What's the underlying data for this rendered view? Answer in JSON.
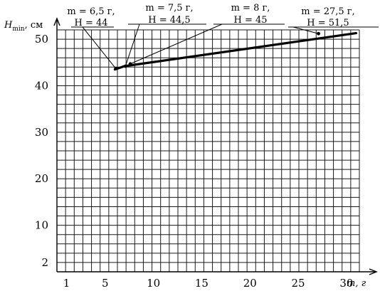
{
  "chart_data": {
    "type": "line",
    "xlabel": "m, г",
    "ylabel": "H_min, см",
    "ylabel_main": "H",
    "ylabel_sub": "min",
    "ylabel_unit": ", см",
    "xlim": [
      0,
      32
    ],
    "ylim": [
      0,
      52
    ],
    "x_ticks": [
      {
        "value": 1,
        "label": "1"
      },
      {
        "value": 5,
        "label": "5"
      },
      {
        "value": 10,
        "label": "10"
      },
      {
        "value": 15,
        "label": "15"
      },
      {
        "value": 20,
        "label": "20"
      },
      {
        "value": 25,
        "label": "25"
      },
      {
        "value": 30,
        "label": "30"
      }
    ],
    "y_ticks": [
      {
        "value": 2,
        "label": "2"
      },
      {
        "value": 10,
        "label": "10"
      },
      {
        "value": 20,
        "label": "20"
      },
      {
        "value": 30,
        "label": "30"
      },
      {
        "value": 40,
        "label": "40"
      },
      {
        "value": 50,
        "label": "50"
      }
    ],
    "grid": true,
    "series": [
      {
        "x": [
          6,
          7,
          31
        ],
        "y": [
          43.5,
          44.2,
          51.3
        ]
      }
    ],
    "annotations": [
      {
        "line1": "m = 6,5 г,",
        "line2": "H = 44",
        "x": 6.5,
        "y": 44
      },
      {
        "line1": "m = 7,5 г,",
        "line2": "H = 44,5",
        "x": 7.5,
        "y": 44.5
      },
      {
        "line1": "m = 8 г,",
        "line2": "H = 45",
        "x": 8,
        "y": 45
      },
      {
        "line1": "m = 27,5 г,",
        "line2": "H = 51,5",
        "x": 27.5,
        "y": 51.5
      }
    ]
  }
}
